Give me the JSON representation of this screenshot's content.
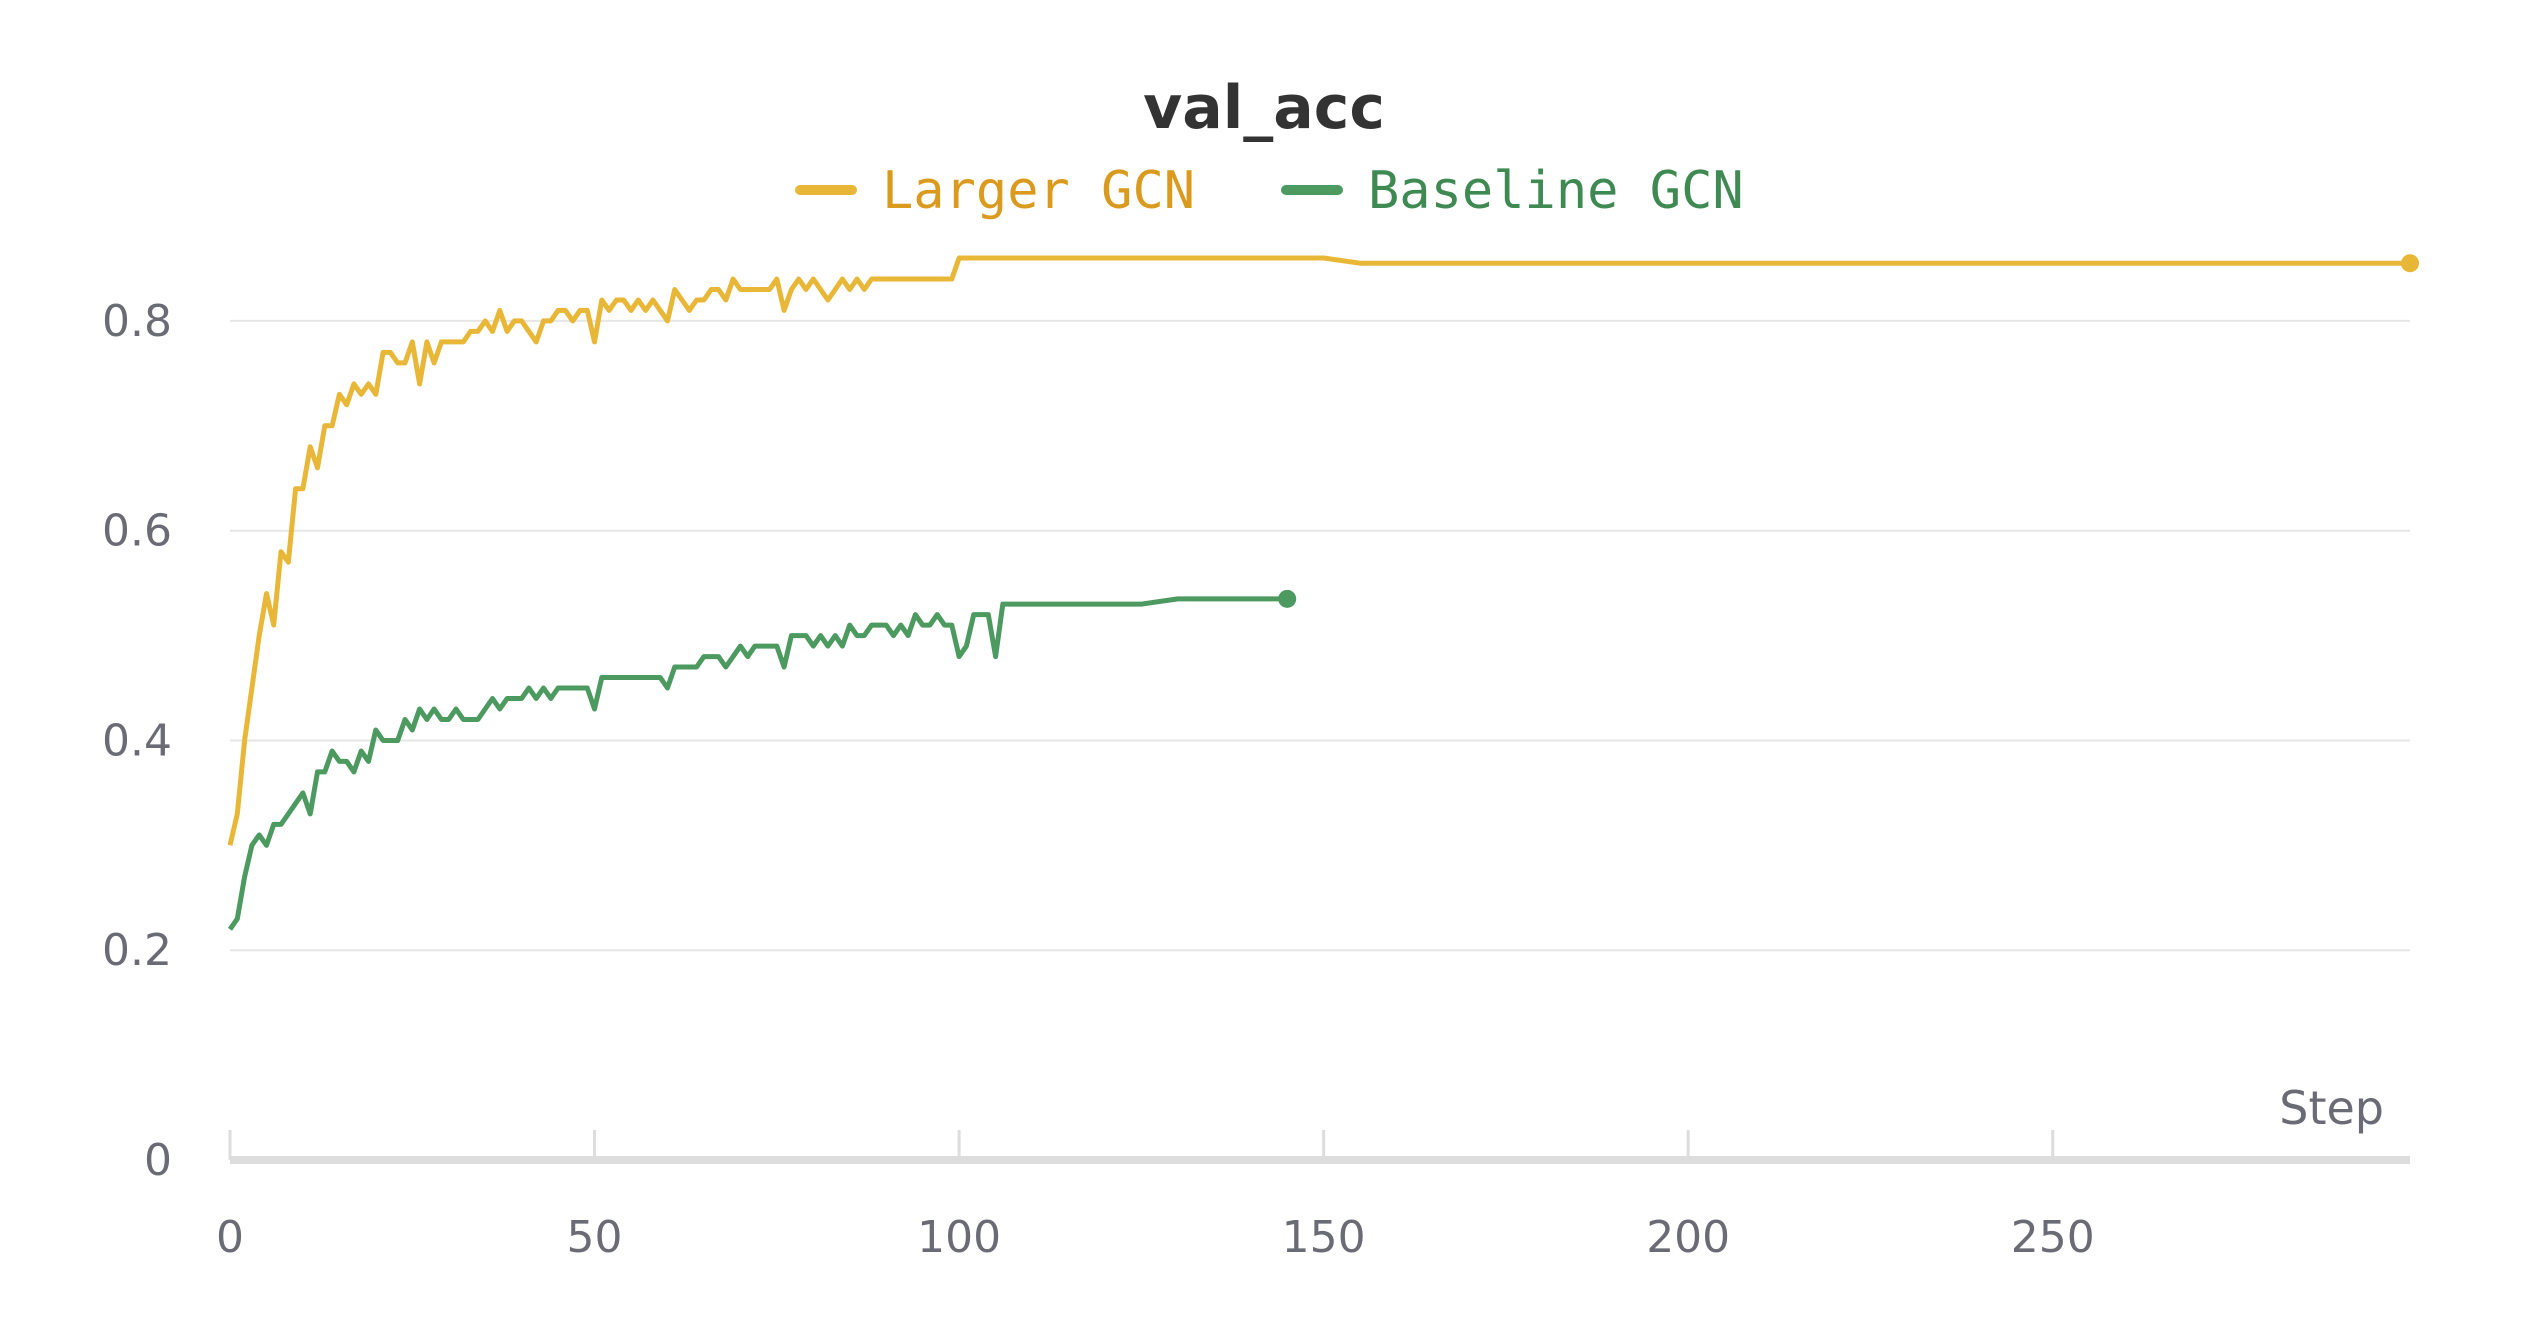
{
  "chart_data": {
    "type": "line",
    "title": "val_acc",
    "xlabel": "Step",
    "ylabel": "",
    "xlim": [
      0,
      299
    ],
    "ylim": [
      0,
      0.86
    ],
    "x_ticks": [
      0,
      50,
      100,
      150,
      200,
      250
    ],
    "y_ticks": [
      0,
      0.2,
      0.4,
      0.6,
      0.8
    ],
    "y_tick_labels": [
      "0",
      "0.2",
      "0.4",
      "0.6",
      "0.8"
    ],
    "grid": true,
    "legend_position": "top-center",
    "series": [
      {
        "name": "Larger GCN",
        "color": "#e8b737",
        "text_color": "#d99a1e",
        "points": [
          [
            0,
            0.3
          ],
          [
            1,
            0.33
          ],
          [
            2,
            0.4
          ],
          [
            3,
            0.45
          ],
          [
            4,
            0.5
          ],
          [
            5,
            0.54
          ],
          [
            6,
            0.51
          ],
          [
            7,
            0.58
          ],
          [
            8,
            0.57
          ],
          [
            9,
            0.64
          ],
          [
            10,
            0.64
          ],
          [
            11,
            0.68
          ],
          [
            12,
            0.66
          ],
          [
            13,
            0.7
          ],
          [
            14,
            0.7
          ],
          [
            15,
            0.73
          ],
          [
            16,
            0.72
          ],
          [
            17,
            0.74
          ],
          [
            18,
            0.73
          ],
          [
            19,
            0.74
          ],
          [
            20,
            0.73
          ],
          [
            21,
            0.77
          ],
          [
            22,
            0.77
          ],
          [
            23,
            0.76
          ],
          [
            24,
            0.76
          ],
          [
            25,
            0.78
          ],
          [
            26,
            0.74
          ],
          [
            27,
            0.78
          ],
          [
            28,
            0.76
          ],
          [
            29,
            0.78
          ],
          [
            30,
            0.78
          ],
          [
            31,
            0.78
          ],
          [
            32,
            0.78
          ],
          [
            33,
            0.79
          ],
          [
            34,
            0.79
          ],
          [
            35,
            0.8
          ],
          [
            36,
            0.79
          ],
          [
            37,
            0.81
          ],
          [
            38,
            0.79
          ],
          [
            39,
            0.8
          ],
          [
            40,
            0.8
          ],
          [
            41,
            0.79
          ],
          [
            42,
            0.78
          ],
          [
            43,
            0.8
          ],
          [
            44,
            0.8
          ],
          [
            45,
            0.81
          ],
          [
            46,
            0.81
          ],
          [
            47,
            0.8
          ],
          [
            48,
            0.81
          ],
          [
            49,
            0.81
          ],
          [
            50,
            0.78
          ],
          [
            51,
            0.82
          ],
          [
            52,
            0.81
          ],
          [
            53,
            0.82
          ],
          [
            54,
            0.82
          ],
          [
            55,
            0.81
          ],
          [
            56,
            0.82
          ],
          [
            57,
            0.81
          ],
          [
            58,
            0.82
          ],
          [
            59,
            0.81
          ],
          [
            60,
            0.8
          ],
          [
            61,
            0.83
          ],
          [
            62,
            0.82
          ],
          [
            63,
            0.81
          ],
          [
            64,
            0.82
          ],
          [
            65,
            0.82
          ],
          [
            66,
            0.83
          ],
          [
            67,
            0.83
          ],
          [
            68,
            0.82
          ],
          [
            69,
            0.84
          ],
          [
            70,
            0.83
          ],
          [
            71,
            0.83
          ],
          [
            72,
            0.83
          ],
          [
            73,
            0.83
          ],
          [
            74,
            0.83
          ],
          [
            75,
            0.84
          ],
          [
            76,
            0.81
          ],
          [
            77,
            0.83
          ],
          [
            78,
            0.84
          ],
          [
            79,
            0.83
          ],
          [
            80,
            0.84
          ],
          [
            81,
            0.83
          ],
          [
            82,
            0.82
          ],
          [
            83,
            0.83
          ],
          [
            84,
            0.84
          ],
          [
            85,
            0.83
          ],
          [
            86,
            0.84
          ],
          [
            87,
            0.83
          ],
          [
            88,
            0.84
          ],
          [
            89,
            0.84
          ],
          [
            90,
            0.84
          ],
          [
            91,
            0.84
          ],
          [
            92,
            0.84
          ],
          [
            93,
            0.84
          ],
          [
            94,
            0.84
          ],
          [
            95,
            0.84
          ],
          [
            96,
            0.84
          ],
          [
            97,
            0.84
          ],
          [
            98,
            0.84
          ],
          [
            99,
            0.84
          ],
          [
            100,
            0.86
          ],
          [
            101,
            0.86
          ],
          [
            102,
            0.86
          ],
          [
            103,
            0.86
          ],
          [
            104,
            0.86
          ],
          [
            105,
            0.86
          ],
          [
            106,
            0.86
          ],
          [
            108,
            0.86
          ],
          [
            110,
            0.86
          ],
          [
            112,
            0.86
          ],
          [
            114,
            0.86
          ],
          [
            116,
            0.86
          ],
          [
            118,
            0.86
          ],
          [
            120,
            0.86
          ],
          [
            122,
            0.86
          ],
          [
            124,
            0.86
          ],
          [
            126,
            0.86
          ],
          [
            128,
            0.86
          ],
          [
            130,
            0.86
          ],
          [
            135,
            0.86
          ],
          [
            140,
            0.86
          ],
          [
            145,
            0.86
          ],
          [
            150,
            0.86
          ],
          [
            155,
            0.855
          ],
          [
            160,
            0.855
          ],
          [
            165,
            0.855
          ],
          [
            170,
            0.855
          ],
          [
            175,
            0.855
          ],
          [
            180,
            0.855
          ],
          [
            185,
            0.855
          ],
          [
            190,
            0.855
          ],
          [
            195,
            0.855
          ],
          [
            200,
            0.855
          ],
          [
            210,
            0.855
          ],
          [
            220,
            0.855
          ],
          [
            230,
            0.855
          ],
          [
            240,
            0.855
          ],
          [
            250,
            0.855
          ],
          [
            260,
            0.855
          ],
          [
            270,
            0.855
          ],
          [
            280,
            0.855
          ],
          [
            290,
            0.855
          ],
          [
            299,
            0.855
          ]
        ]
      },
      {
        "name": "Baseline GCN",
        "color": "#4c9a5f",
        "text_color": "#3f8a52",
        "points": [
          [
            0,
            0.22
          ],
          [
            1,
            0.23
          ],
          [
            2,
            0.27
          ],
          [
            3,
            0.3
          ],
          [
            4,
            0.31
          ],
          [
            5,
            0.3
          ],
          [
            6,
            0.32
          ],
          [
            7,
            0.32
          ],
          [
            8,
            0.33
          ],
          [
            9,
            0.34
          ],
          [
            10,
            0.35
          ],
          [
            11,
            0.33
          ],
          [
            12,
            0.37
          ],
          [
            13,
            0.37
          ],
          [
            14,
            0.39
          ],
          [
            15,
            0.38
          ],
          [
            16,
            0.38
          ],
          [
            17,
            0.37
          ],
          [
            18,
            0.39
          ],
          [
            19,
            0.38
          ],
          [
            20,
            0.41
          ],
          [
            21,
            0.4
          ],
          [
            22,
            0.4
          ],
          [
            23,
            0.4
          ],
          [
            24,
            0.42
          ],
          [
            25,
            0.41
          ],
          [
            26,
            0.43
          ],
          [
            27,
            0.42
          ],
          [
            28,
            0.43
          ],
          [
            29,
            0.42
          ],
          [
            30,
            0.42
          ],
          [
            31,
            0.43
          ],
          [
            32,
            0.42
          ],
          [
            33,
            0.42
          ],
          [
            34,
            0.42
          ],
          [
            35,
            0.43
          ],
          [
            36,
            0.44
          ],
          [
            37,
            0.43
          ],
          [
            38,
            0.44
          ],
          [
            39,
            0.44
          ],
          [
            40,
            0.44
          ],
          [
            41,
            0.45
          ],
          [
            42,
            0.44
          ],
          [
            43,
            0.45
          ],
          [
            44,
            0.44
          ],
          [
            45,
            0.45
          ],
          [
            46,
            0.45
          ],
          [
            47,
            0.45
          ],
          [
            48,
            0.45
          ],
          [
            49,
            0.45
          ],
          [
            50,
            0.43
          ],
          [
            51,
            0.46
          ],
          [
            52,
            0.46
          ],
          [
            53,
            0.46
          ],
          [
            54,
            0.46
          ],
          [
            55,
            0.46
          ],
          [
            56,
            0.46
          ],
          [
            57,
            0.46
          ],
          [
            58,
            0.46
          ],
          [
            59,
            0.46
          ],
          [
            60,
            0.45
          ],
          [
            61,
            0.47
          ],
          [
            62,
            0.47
          ],
          [
            63,
            0.47
          ],
          [
            64,
            0.47
          ],
          [
            65,
            0.48
          ],
          [
            66,
            0.48
          ],
          [
            67,
            0.48
          ],
          [
            68,
            0.47
          ],
          [
            69,
            0.48
          ],
          [
            70,
            0.49
          ],
          [
            71,
            0.48
          ],
          [
            72,
            0.49
          ],
          [
            73,
            0.49
          ],
          [
            74,
            0.49
          ],
          [
            75,
            0.49
          ],
          [
            76,
            0.47
          ],
          [
            77,
            0.5
          ],
          [
            78,
            0.5
          ],
          [
            79,
            0.5
          ],
          [
            80,
            0.49
          ],
          [
            81,
            0.5
          ],
          [
            82,
            0.49
          ],
          [
            83,
            0.5
          ],
          [
            84,
            0.49
          ],
          [
            85,
            0.51
          ],
          [
            86,
            0.5
          ],
          [
            87,
            0.5
          ],
          [
            88,
            0.51
          ],
          [
            89,
            0.51
          ],
          [
            90,
            0.51
          ],
          [
            91,
            0.5
          ],
          [
            92,
            0.51
          ],
          [
            93,
            0.5
          ],
          [
            94,
            0.52
          ],
          [
            95,
            0.51
          ],
          [
            96,
            0.51
          ],
          [
            97,
            0.52
          ],
          [
            98,
            0.51
          ],
          [
            99,
            0.51
          ],
          [
            100,
            0.48
          ],
          [
            101,
            0.49
          ],
          [
            102,
            0.52
          ],
          [
            103,
            0.52
          ],
          [
            104,
            0.52
          ],
          [
            105,
            0.48
          ],
          [
            106,
            0.53
          ],
          [
            107,
            0.53
          ],
          [
            108,
            0.53
          ],
          [
            110,
            0.53
          ],
          [
            112,
            0.53
          ],
          [
            114,
            0.53
          ],
          [
            116,
            0.53
          ],
          [
            118,
            0.53
          ],
          [
            120,
            0.53
          ],
          [
            125,
            0.53
          ],
          [
            130,
            0.535
          ],
          [
            135,
            0.535
          ],
          [
            140,
            0.535
          ],
          [
            145,
            0.535
          ]
        ]
      }
    ]
  }
}
